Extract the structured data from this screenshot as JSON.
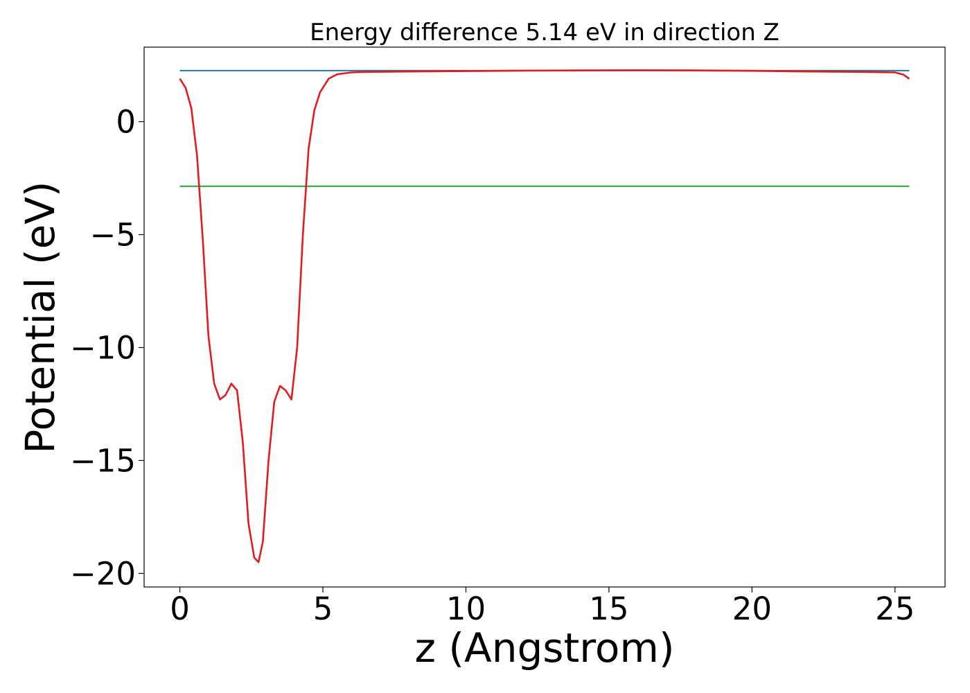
{
  "chart_data": {
    "type": "line",
    "title": "Energy difference 5.14 eV in direction Z",
    "xlabel": "z (Angstrom)",
    "ylabel": "Potential (eV)",
    "xlim": [
      -1.25,
      26.75
    ],
    "ylim": [
      -20.6,
      3.3
    ],
    "xticks": [
      0,
      5,
      10,
      15,
      20,
      25
    ],
    "xtick_labels": [
      "0",
      "5",
      "10",
      "15",
      "20",
      "25"
    ],
    "yticks": [
      0,
      -5,
      -10,
      -15,
      -20
    ],
    "ytick_labels": [
      "0",
      "−5",
      "−10",
      "−15",
      "−20"
    ],
    "grid": false,
    "legend": "none",
    "series": [
      {
        "color": "#1f77b4",
        "x": [
          0,
          25.5
        ],
        "y": [
          2.26,
          2.26
        ]
      },
      {
        "color": "#2ca02c",
        "x": [
          0,
          25.5
        ],
        "y": [
          -2.86,
          -2.86
        ]
      },
      {
        "color": "#e41a1c",
        "x": [
          0,
          0.2,
          0.4,
          0.6,
          0.8,
          1.0,
          1.2,
          1.4,
          1.6,
          1.8,
          2.0,
          2.2,
          2.4,
          2.6,
          2.75,
          2.9,
          3.1,
          3.3,
          3.5,
          3.7,
          3.9,
          4.1,
          4.3,
          4.5,
          4.7,
          4.9,
          5.2,
          5.5,
          6.0,
          6.5,
          8,
          10,
          12,
          14,
          16,
          18,
          20,
          22,
          24,
          25.0,
          25.3,
          25.5
        ],
        "y": [
          1.9,
          1.5,
          0.6,
          -1.5,
          -5.2,
          -9.5,
          -11.6,
          -12.3,
          -12.1,
          -11.6,
          -11.9,
          -14.2,
          -17.8,
          -19.3,
          -19.5,
          -18.6,
          -15.0,
          -12.4,
          -11.7,
          -11.9,
          -12.3,
          -10.0,
          -5.0,
          -1.2,
          0.5,
          1.3,
          1.9,
          2.1,
          2.18,
          2.2,
          2.22,
          2.24,
          2.26,
          2.27,
          2.28,
          2.27,
          2.25,
          2.22,
          2.2,
          2.18,
          2.08,
          1.9
        ]
      }
    ]
  }
}
